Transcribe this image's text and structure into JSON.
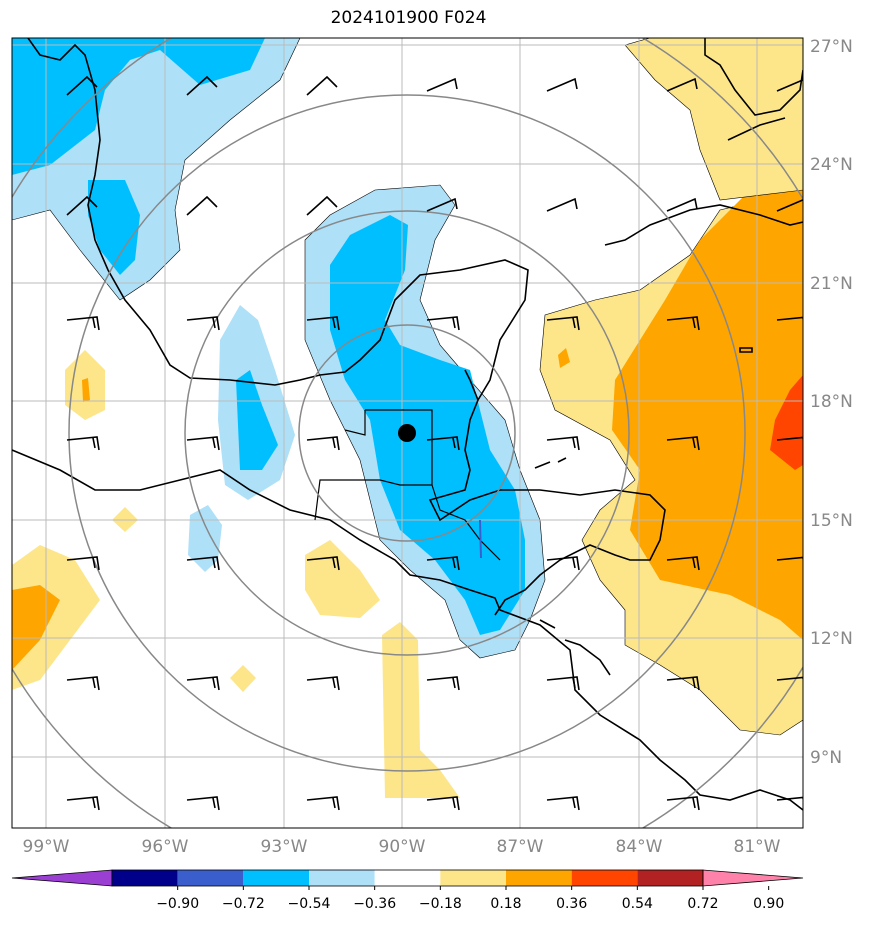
{
  "title": "2024101900 F024",
  "map": {
    "lon_range": [
      -100,
      -80
    ],
    "lat_range": [
      7.5,
      27.5
    ],
    "lon_labels": [
      "99°W",
      "96°W",
      "93°W",
      "90°W",
      "87°W",
      "84°W",
      "81°W"
    ],
    "lat_labels": [
      "27°N",
      "24°N",
      "21°N",
      "18°N",
      "15°N",
      "12°N",
      "9°N"
    ],
    "center_marker": {
      "lon": -89.9,
      "lat": 17.2
    },
    "range_rings_count": 4
  },
  "colorbar": {
    "ticks": [
      "−0.90",
      "−0.72",
      "−0.54",
      "−0.36",
      "−0.18",
      "0.18",
      "0.36",
      "0.54",
      "0.72",
      "0.90"
    ],
    "colors": [
      "#9a3fd1",
      "#00008b",
      "#3a5fcd",
      "#00bfff",
      "#aee0f8",
      "#ffffff",
      "#fde68a",
      "#ffa500",
      "#ff4500",
      "#b22222",
      "#ff82ab"
    ]
  },
  "colors": {
    "neg_strong": "#00bfff",
    "neg_weak": "#aee0f8",
    "pos_weak": "#fde68a",
    "pos_mid": "#ffa500",
    "pos_strong": "#ff4500",
    "grid": "#bbbbbb",
    "ring": "#888888"
  }
}
